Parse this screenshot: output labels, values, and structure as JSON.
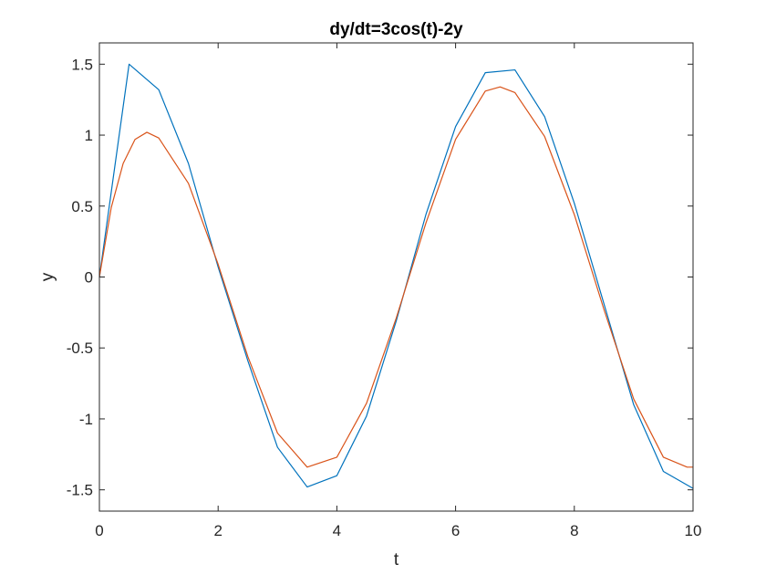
{
  "chart_data": {
    "type": "line",
    "title": "dy/dt=3cos(t)-2y",
    "xlabel": "t",
    "ylabel": "y",
    "xlim": [
      0,
      10
    ],
    "ylim": [
      -1.65,
      1.65
    ],
    "xticks": [
      0,
      2,
      4,
      6,
      8,
      10
    ],
    "xtick_labels": [
      "0",
      "2",
      "4",
      "6",
      "8",
      "10"
    ],
    "yticks": [
      -1.5,
      -1,
      -0.5,
      0,
      0.5,
      1,
      1.5
    ],
    "ytick_labels": [
      "-1.5",
      "-1",
      "-0.5",
      "0",
      "0.5",
      "1",
      "1.5"
    ],
    "grid": false,
    "legend": false,
    "series": [
      {
        "color": "#0072BD",
        "x": [
          0,
          0.5,
          1,
          1.5,
          2,
          2.5,
          3,
          3.5,
          4,
          4.5,
          5,
          5.5,
          6,
          6.5,
          7,
          7.5,
          8,
          8.5,
          9,
          9.5,
          10
        ],
        "y": [
          0,
          1.5,
          1.32,
          0.8,
          0.07,
          -0.59,
          -1.2,
          -1.48,
          -1.4,
          -0.98,
          -0.31,
          0.44,
          1.06,
          1.44,
          1.46,
          1.13,
          0.52,
          -0.19,
          -0.9,
          -1.37,
          -1.49
        ]
      },
      {
        "color": "#D95319",
        "x": [
          0,
          0.2,
          0.4,
          0.6,
          0.8,
          1,
          1.5,
          2,
          2.5,
          3,
          3.5,
          4,
          4.5,
          5,
          5.5,
          6,
          6.5,
          6.75,
          7,
          7.5,
          8,
          8.5,
          9,
          9.5,
          9.9,
          10
        ],
        "y": [
          0,
          0.49,
          0.8,
          0.97,
          1.02,
          0.98,
          0.66,
          0.09,
          -0.56,
          -1.1,
          -1.34,
          -1.27,
          -0.89,
          -0.29,
          0.38,
          0.97,
          1.31,
          1.34,
          1.3,
          0.99,
          0.44,
          -0.23,
          -0.86,
          -1.27,
          -1.34,
          -1.34
        ]
      }
    ]
  }
}
